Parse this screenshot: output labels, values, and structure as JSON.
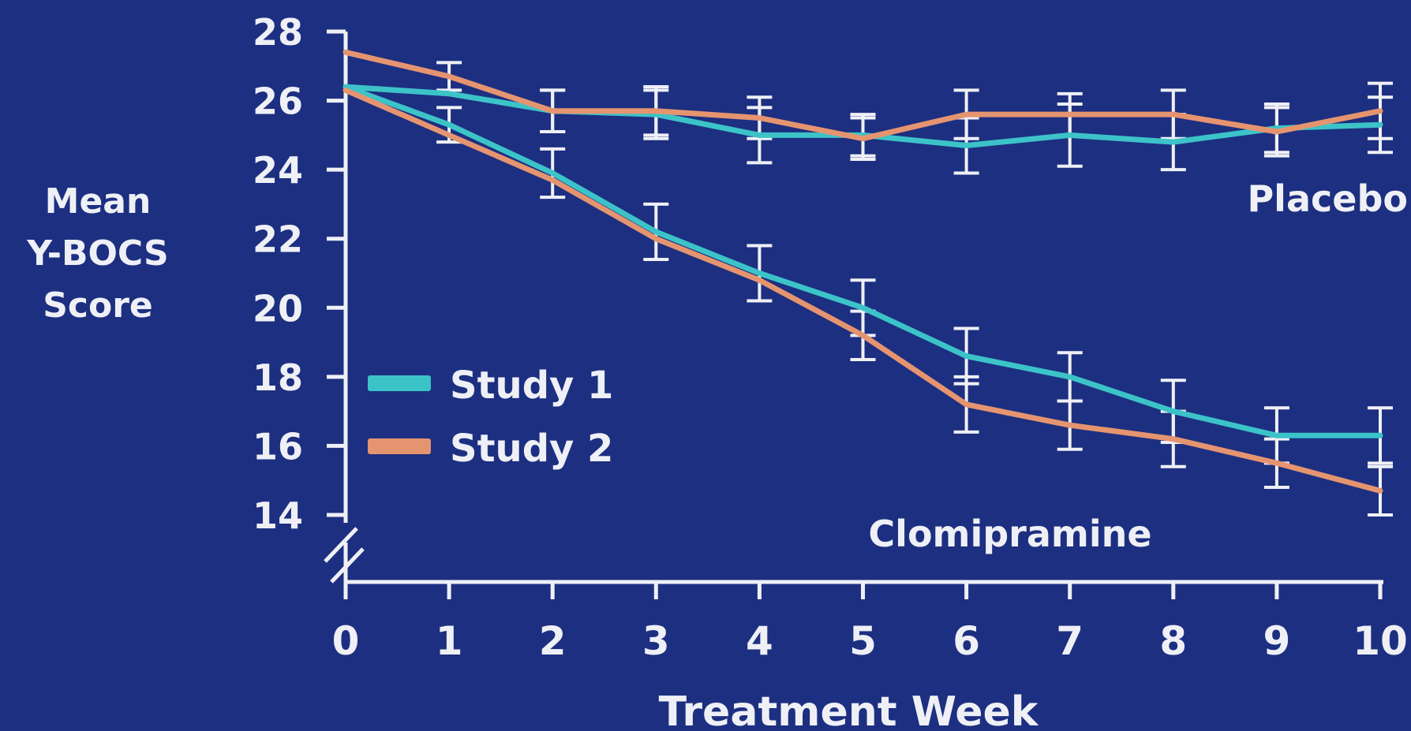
{
  "chart_data": {
    "type": "line",
    "xlabel": "Treatment Week",
    "ylabel_lines": [
      "Mean",
      "Y-BOCS",
      "Score"
    ],
    "x": [
      0,
      1,
      2,
      3,
      4,
      5,
      6,
      7,
      8,
      9,
      10
    ],
    "x_ticks": [
      "0",
      "1",
      "2",
      "3",
      "4",
      "5",
      "6",
      "7",
      "8",
      "9",
      "10"
    ],
    "y_ticks": [
      "28",
      "26",
      "24",
      "22",
      "20",
      "18",
      "16",
      "14"
    ],
    "ylim": [
      14,
      28
    ],
    "axis_break": "y-axis below 14",
    "grid": false,
    "legend": {
      "position": "left-center",
      "entries": [
        {
          "label": "Study 1",
          "color": "#3cc3c8"
        },
        {
          "label": "Study 2",
          "color": "#e59470"
        }
      ]
    },
    "group_labels": {
      "placebo": "Placebo",
      "drug": "Clomipramine"
    },
    "series": [
      {
        "group": "placebo",
        "study": "Study 1",
        "color": "#3cc3c8",
        "values": [
          26.4,
          26.2,
          25.7,
          25.6,
          25.0,
          25.0,
          24.7,
          25.0,
          24.8,
          25.2,
          25.3
        ],
        "error": [
          0,
          0,
          0.6,
          0.7,
          0.8,
          0.6,
          0.8,
          0.9,
          0.8,
          0.7,
          0.8
        ]
      },
      {
        "group": "placebo",
        "study": "Study 2",
        "color": "#e59470",
        "values": [
          27.4,
          26.7,
          25.7,
          25.7,
          25.5,
          24.9,
          25.6,
          25.6,
          25.6,
          25.1,
          25.7
        ],
        "error": [
          0,
          0.4,
          0.6,
          0.7,
          0.6,
          0.6,
          0.7,
          0.6,
          0.7,
          0.7,
          0.8
        ]
      },
      {
        "group": "clomipramine",
        "study": "Study 1",
        "color": "#3cc3c8",
        "values": [
          26.4,
          25.3,
          23.9,
          22.2,
          21.0,
          20.0,
          18.6,
          18.0,
          17.0,
          16.3,
          16.3
        ],
        "error": [
          0,
          0.5,
          0.7,
          0.8,
          0.8,
          0.8,
          0.8,
          0.7,
          0.9,
          0.8,
          0.8
        ]
      },
      {
        "group": "clomipramine",
        "study": "Study 2",
        "color": "#e59470",
        "values": [
          26.3,
          25.0,
          23.7,
          22.0,
          20.8,
          19.2,
          17.2,
          16.6,
          16.2,
          15.5,
          14.7
        ],
        "error": [
          0,
          0,
          0,
          0,
          0,
          0.7,
          0.8,
          0.7,
          0.8,
          0.7,
          0.7
        ]
      }
    ]
  }
}
